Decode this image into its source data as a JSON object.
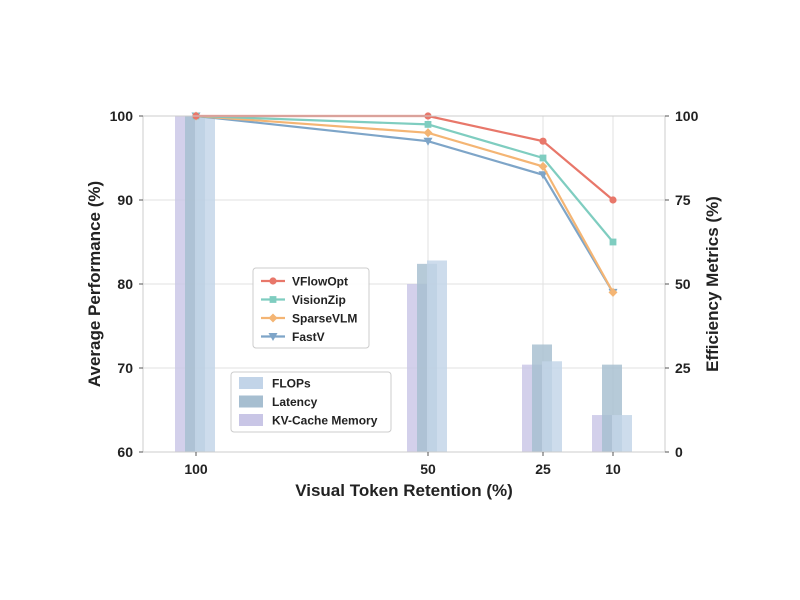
{
  "chart_data": {
    "type": "bar+line",
    "xlabel": "Visual Token Retention (%)",
    "ylabel_left": "Average Performance (%)",
    "ylabel_right": "Efficiency Metrics (%)",
    "categories": [
      "100",
      "50",
      "25",
      "10"
    ],
    "ylim_left": [
      60,
      100
    ],
    "yticks_left": [
      "60",
      "70",
      "80",
      "90",
      "100"
    ],
    "ylim_right": [
      0,
      100
    ],
    "yticks_right": [
      "0",
      "25",
      "50",
      "75",
      "100"
    ],
    "grid": true,
    "line_series": [
      {
        "name": "VFlowOpt",
        "color": "#e8776a",
        "marker": "circle",
        "values": [
          100,
          100,
          97,
          90
        ]
      },
      {
        "name": "VisionZip",
        "color": "#7fcdc0",
        "marker": "square",
        "values": [
          100,
          99,
          95,
          85
        ]
      },
      {
        "name": "SparseVLM",
        "color": "#f4b574",
        "marker": "diamond",
        "values": [
          100,
          98,
          94,
          79
        ]
      },
      {
        "name": "FastV",
        "color": "#7ea5c8",
        "marker": "triangle-down",
        "values": [
          100,
          97,
          93,
          79
        ]
      }
    ],
    "bar_series": [
      {
        "name": "FLOPs",
        "color": "#c2d4e8",
        "values": [
          100,
          57,
          27,
          11
        ]
      },
      {
        "name": "Latency",
        "color": "#a6bed0",
        "values": [
          100,
          56,
          32,
          26
        ]
      },
      {
        "name": "KV-Cache Memory",
        "color": "#c9c6e6",
        "values": [
          100,
          50,
          26,
          11
        ]
      }
    ],
    "line_legend_position": "center-left",
    "bar_legend_position": "lower-left"
  }
}
